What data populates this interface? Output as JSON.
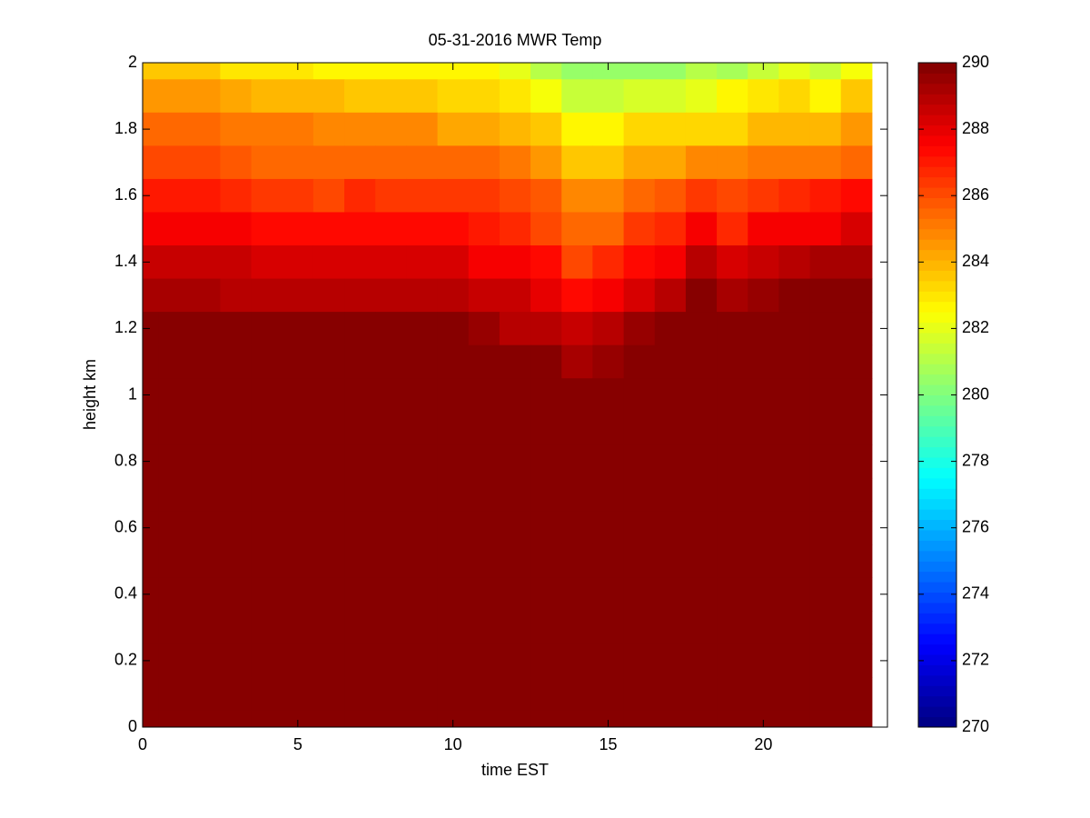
{
  "chart_data": {
    "type": "heatmap",
    "title": "05-31-2016 MWR Temp",
    "x_label": "time EST",
    "y_label": "height km",
    "x": [
      0,
      1,
      2,
      3,
      4,
      5,
      6,
      7,
      8,
      9,
      10,
      11,
      12,
      13,
      14,
      15,
      16,
      17,
      18,
      19,
      20,
      21,
      22,
      23
    ],
    "y": [
      2.0,
      1.9,
      1.8,
      1.7,
      1.6,
      1.5,
      1.4,
      1.3,
      1.2,
      1.1,
      1.0,
      0.9,
      0.8,
      0.7,
      0.6,
      0.5,
      0.4,
      0.3,
      0.2,
      0.1,
      0
    ],
    "z": [
      [
        283.5,
        283.5,
        283.5,
        283,
        283,
        283,
        282.7,
        282.7,
        282.5,
        282.5,
        282.5,
        282.5,
        282,
        281,
        280.5,
        280.5,
        280.5,
        280.5,
        281,
        280.8,
        281.5,
        282,
        281.5,
        282.3
      ],
      [
        284.5,
        284.5,
        284.5,
        284.3,
        284,
        284,
        284,
        283.5,
        283.5,
        283.5,
        283.3,
        283.3,
        283,
        282.3,
        281.5,
        281.5,
        281.7,
        281.7,
        282,
        282.5,
        283,
        283.3,
        282.8,
        283.5
      ],
      [
        285.5,
        285.5,
        285.5,
        285.3,
        285,
        285,
        284.7,
        284.7,
        284.7,
        284.7,
        284.3,
        284.3,
        284,
        283.5,
        282.5,
        282.5,
        283.3,
        283.3,
        283.3,
        283.3,
        284,
        284,
        284,
        284.5
      ],
      [
        286,
        286,
        286,
        285.8,
        285.6,
        285.6,
        285.6,
        285.6,
        285.4,
        285.4,
        285.4,
        285.4,
        285,
        284.4,
        283.5,
        283.5,
        284.3,
        284.3,
        284.7,
        284.7,
        285,
        285.3,
        285.3,
        285.6
      ],
      [
        287,
        287,
        287,
        286.7,
        286.4,
        286.4,
        286.2,
        286.7,
        286.5,
        286.5,
        286.5,
        286.5,
        286,
        285.8,
        284.9,
        284.9,
        285.6,
        285.8,
        286.3,
        286,
        286.3,
        286.6,
        287,
        287.3
      ],
      [
        287.8,
        287.8,
        287.8,
        287.5,
        287.3,
        287.3,
        287.3,
        287.3,
        287.3,
        287.3,
        287.3,
        287,
        286.6,
        286.2,
        285.6,
        285.6,
        286.3,
        286.6,
        287.5,
        286.7,
        287.5,
        287.8,
        287.8,
        288.3
      ],
      [
        288.7,
        288.7,
        288.7,
        288.5,
        288.2,
        288.2,
        288.2,
        288.2,
        288.2,
        288.2,
        288.2,
        287.8,
        287.8,
        287.3,
        286.2,
        286.6,
        287.2,
        287.6,
        289,
        288.3,
        288.6,
        288.8,
        289.1,
        289.3
      ],
      [
        289.3,
        289.3,
        289.3,
        289,
        288.8,
        288.8,
        288.8,
        289,
        288.8,
        288.8,
        288.8,
        288.7,
        288.5,
        288,
        287.2,
        287.8,
        288.4,
        289,
        290,
        289.2,
        289.5,
        290,
        290,
        290
      ],
      [
        290,
        290,
        290,
        290,
        290,
        290,
        290,
        290,
        290,
        290,
        290,
        289.5,
        289,
        289,
        288.7,
        289,
        289.4,
        290,
        290,
        290,
        290,
        290,
        290,
        290
      ],
      [
        290,
        290,
        290,
        290,
        290,
        290,
        290,
        290,
        290,
        290,
        290,
        290,
        290,
        290,
        289.3,
        289.5,
        290,
        290,
        290,
        290,
        290,
        290,
        290,
        290
      ],
      [
        290,
        290,
        290,
        290,
        290,
        290,
        290,
        290,
        290,
        290,
        290,
        290,
        290,
        290,
        290,
        290,
        290,
        290,
        290,
        290,
        290,
        290,
        290,
        290
      ],
      [
        290,
        290,
        290,
        290,
        290,
        290,
        290,
        290,
        290,
        290,
        290,
        290,
        290,
        290,
        290,
        290,
        290,
        290,
        290,
        290,
        290,
        290,
        290,
        290
      ],
      [
        290,
        290,
        290,
        290,
        290,
        290,
        290,
        290,
        290,
        290,
        290,
        290,
        290,
        290,
        290,
        290,
        290,
        290,
        290,
        290,
        290,
        290,
        290,
        290
      ],
      [
        290,
        290,
        290,
        290,
        290,
        290,
        290,
        290,
        290,
        290,
        290,
        290,
        290,
        290,
        290,
        290,
        290,
        290,
        290,
        290,
        290,
        290,
        290,
        290
      ],
      [
        290,
        290,
        290,
        290,
        290,
        290,
        290,
        290,
        290,
        290,
        290,
        290,
        290,
        290,
        290,
        290,
        290,
        290,
        290,
        290,
        290,
        290,
        290,
        290
      ],
      [
        290,
        290,
        290,
        290,
        290,
        290,
        290,
        290,
        290,
        290,
        290,
        290,
        290,
        290,
        290,
        290,
        290,
        290,
        290,
        290,
        290,
        290,
        290,
        290
      ],
      [
        290,
        290,
        290,
        290,
        290,
        290,
        290,
        290,
        290,
        290,
        290,
        290,
        290,
        290,
        290,
        290,
        290,
        290,
        290,
        290,
        290,
        290,
        290,
        290
      ],
      [
        290,
        290,
        290,
        290,
        290,
        290,
        290,
        290,
        290,
        290,
        290,
        290,
        290,
        290,
        290,
        290,
        290,
        290,
        290,
        290,
        290,
        290,
        290,
        290
      ],
      [
        290,
        290,
        290,
        290,
        290,
        290,
        290,
        290,
        290,
        290,
        290,
        290,
        290,
        290,
        290,
        290,
        290,
        290,
        290,
        290,
        290,
        290,
        290,
        290
      ],
      [
        290,
        290,
        290,
        290,
        290,
        290,
        290,
        290,
        290,
        290,
        290,
        290,
        290,
        290,
        290,
        290,
        290,
        290,
        290,
        290,
        290,
        290,
        290,
        290
      ],
      [
        290,
        290,
        290,
        290,
        290,
        290,
        290,
        290,
        290,
        290,
        290,
        290,
        290,
        290,
        290,
        290,
        290,
        290,
        290,
        290,
        290,
        290,
        290,
        290
      ]
    ],
    "xlim": [
      0,
      24
    ],
    "ylim": [
      0,
      2
    ],
    "xticks": [
      0,
      5,
      10,
      15,
      20
    ],
    "yticks": [
      0,
      0.2,
      0.4,
      0.6,
      0.8,
      1,
      1.2,
      1.4,
      1.6,
      1.8,
      2
    ],
    "colormap": "jet",
    "colorbar": {
      "clim": [
        270,
        290
      ],
      "ticks": [
        270,
        272,
        274,
        276,
        278,
        280,
        282,
        284,
        286,
        288,
        290
      ]
    }
  }
}
